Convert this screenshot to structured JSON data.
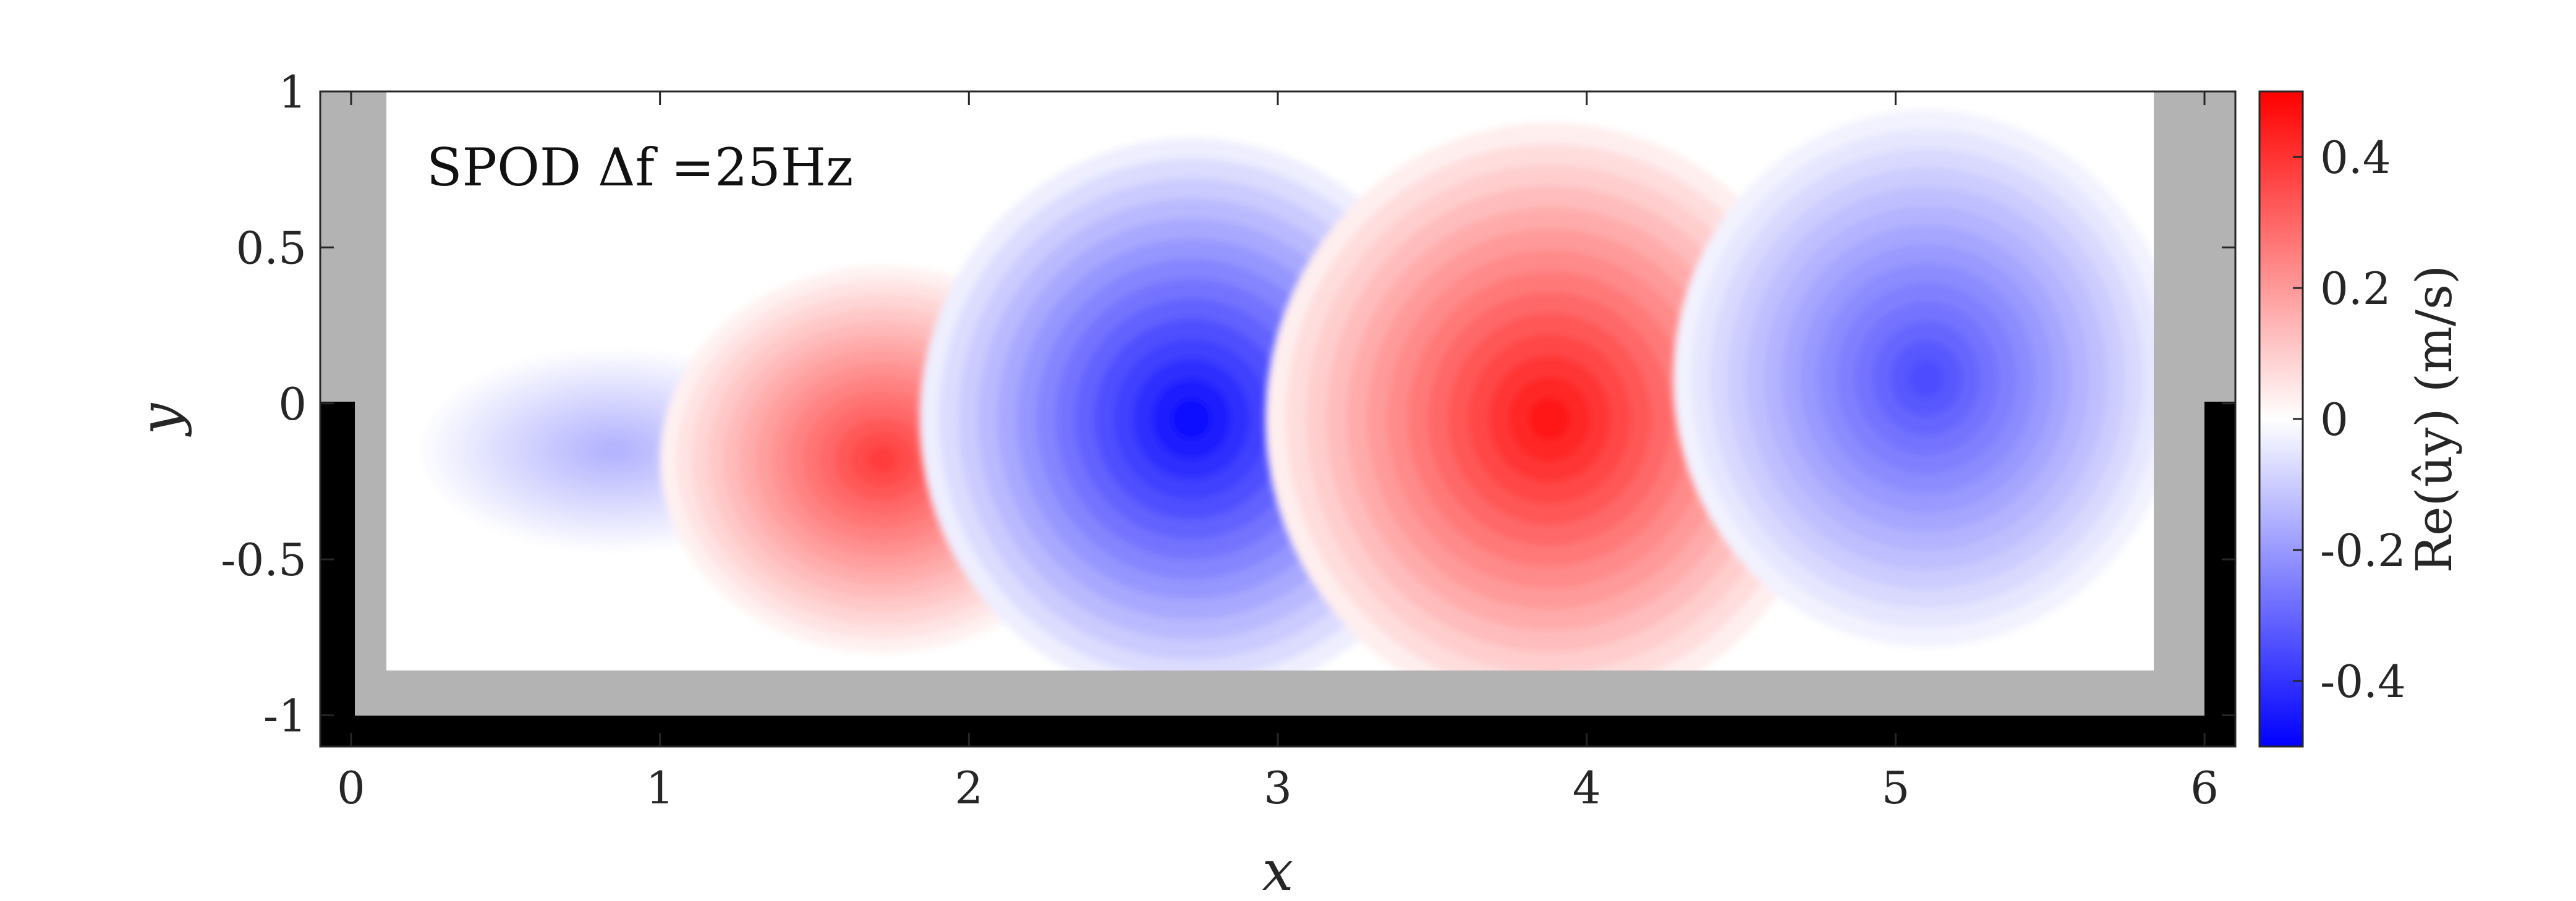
{
  "chart_data": {
    "type": "heatmap",
    "title": "",
    "xlabel": "x",
    "ylabel": "y",
    "xlim": [
      -0.1,
      6.1
    ],
    "ylim": [
      -1.1,
      1.0
    ],
    "x_ticks": [
      "0",
      "1",
      "2",
      "3",
      "4",
      "5",
      "6"
    ],
    "y_ticks": [
      "1",
      "0.5",
      "0",
      "-0.5",
      "-1"
    ],
    "annotation": "SPOD Δf =25Hz",
    "field": {
      "quantity": "Re(û_y) (m/s)",
      "extrema": [
        {
          "x": 0.85,
          "y": -0.15,
          "value": -0.15
        },
        {
          "x": 1.72,
          "y": -0.18,
          "value": 0.38
        },
        {
          "x": 2.72,
          "y": -0.05,
          "value": -0.48
        },
        {
          "x": 3.88,
          "y": -0.05,
          "value": 0.46
        },
        {
          "x": 5.1,
          "y": 0.08,
          "value": -0.35
        }
      ]
    },
    "geometry": {
      "wall_color": "#b3b3b3",
      "inner_wall_color": "#000000"
    },
    "colorbar": {
      "label": "Re(ûy) (m/s)",
      "range": [
        -0.5,
        0.5
      ],
      "ticks": [
        "0.4",
        "0.2",
        "0",
        "-0.2",
        "-0.4"
      ],
      "colors": {
        "low": "#0000ff",
        "mid": "#ffffff",
        "high": "#ff0000"
      }
    }
  }
}
